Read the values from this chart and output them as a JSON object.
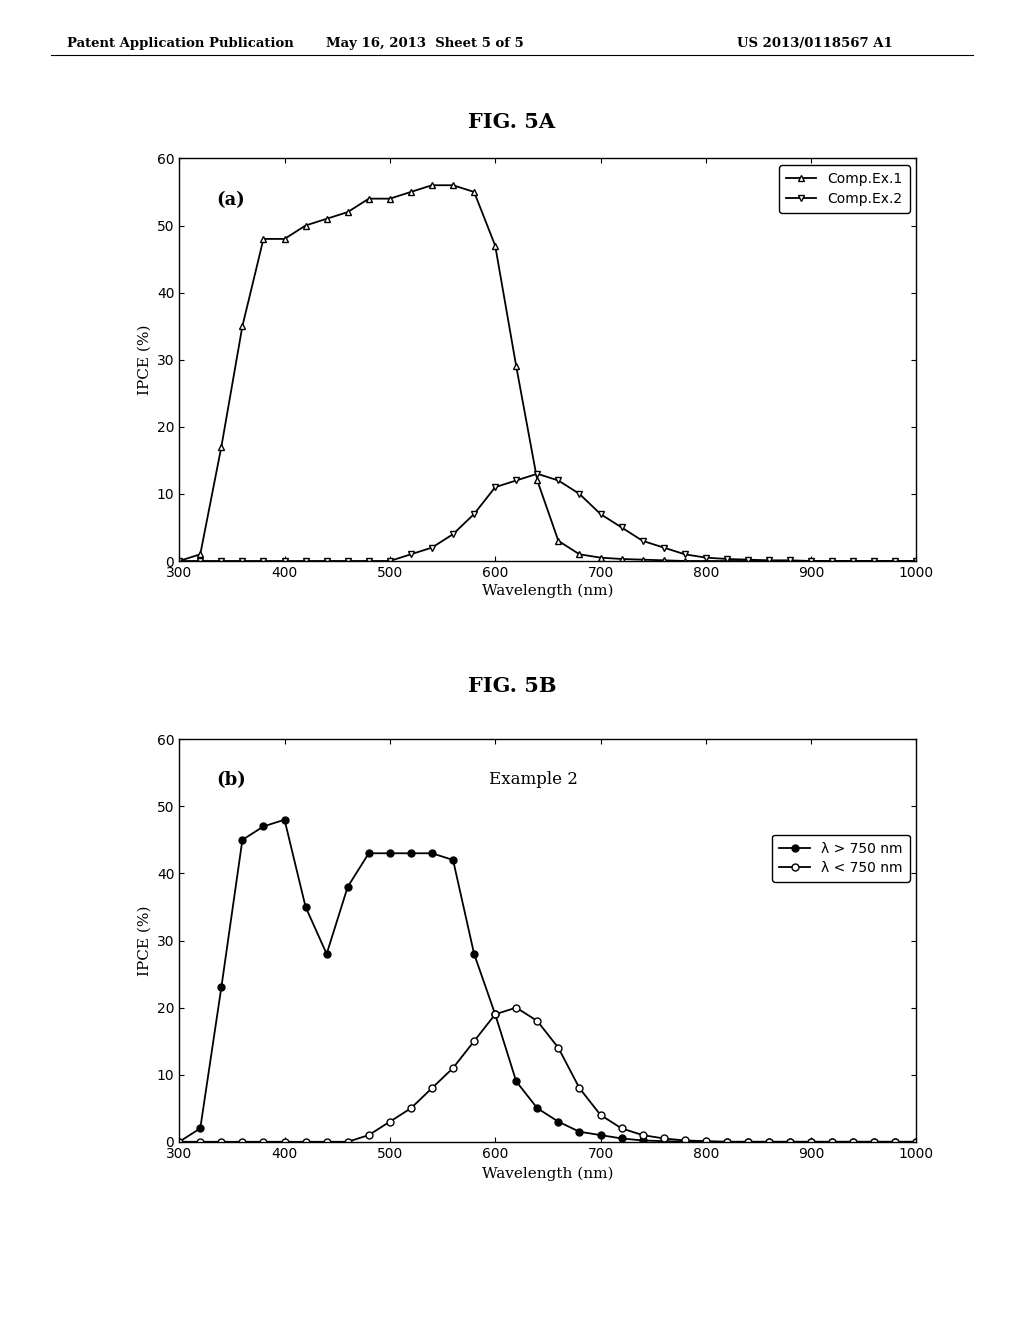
{
  "fig_title_a": "FIG. 5A",
  "fig_title_b": "FIG. 5B",
  "header_left": "Patent Application Publication",
  "header_mid": "May 16, 2013  Sheet 5 of 5",
  "header_right": "US 2013/0118567 A1",
  "xlabel": "Wavelength (nm)",
  "ylabel": "IPCE (%)",
  "xlim": [
    300,
    1000
  ],
  "ylim": [
    0,
    60
  ],
  "xticks": [
    300,
    400,
    500,
    600,
    700,
    800,
    900,
    1000
  ],
  "yticks": [
    0,
    10,
    20,
    30,
    40,
    50,
    60
  ],
  "panel_a_label": "(a)",
  "panel_b_label": "(b)",
  "legend_b_title": "Example 2",
  "legend_a_entries": [
    "Comp.Ex.1",
    "Comp.Ex.2"
  ],
  "legend_b_entries": [
    "λ > 750 nm",
    "λ < 750 nm"
  ],
  "background_color": "#ffffff",
  "comp_ex1_x": [
    300,
    320,
    340,
    360,
    380,
    400,
    420,
    440,
    460,
    480,
    500,
    520,
    540,
    560,
    580,
    600,
    620,
    640,
    660,
    680,
    700,
    720,
    740,
    760,
    780,
    800,
    820,
    840,
    860,
    880,
    900,
    920,
    940,
    960,
    980,
    1000
  ],
  "comp_ex1_y": [
    0,
    1,
    17,
    35,
    48,
    48,
    50,
    51,
    52,
    54,
    54,
    55,
    56,
    56,
    55,
    47,
    29,
    12,
    3,
    1,
    0.5,
    0.3,
    0.2,
    0.1,
    0.0,
    0.0,
    0.0,
    0.0,
    0.0,
    0.0,
    0.0,
    0.0,
    0.0,
    0.0,
    0.0,
    0.0
  ],
  "comp_ex2_x": [
    300,
    320,
    340,
    360,
    380,
    400,
    420,
    440,
    460,
    480,
    500,
    520,
    540,
    560,
    580,
    600,
    620,
    640,
    660,
    680,
    700,
    720,
    740,
    760,
    780,
    800,
    820,
    840,
    860,
    880,
    900,
    920,
    940,
    960,
    980,
    1000
  ],
  "comp_ex2_y": [
    0,
    0,
    0,
    0,
    0,
    0,
    0,
    0,
    0,
    0,
    0,
    1,
    2,
    4,
    7,
    11,
    12,
    13,
    12,
    10,
    7,
    5,
    3,
    2,
    1,
    0.5,
    0.3,
    0.2,
    0.1,
    0.1,
    0.0,
    0.0,
    0.0,
    0.0,
    0.0,
    0.0
  ],
  "ex2_gt750_x": [
    300,
    320,
    340,
    360,
    380,
    400,
    420,
    440,
    460,
    480,
    500,
    520,
    540,
    560,
    580,
    600,
    620,
    640,
    660,
    680,
    700,
    720,
    740,
    760,
    780,
    800,
    820,
    840,
    860,
    880,
    900,
    920,
    940,
    960,
    980,
    1000
  ],
  "ex2_gt750_y": [
    0,
    2,
    23,
    45,
    47,
    48,
    35,
    28,
    38,
    43,
    43,
    43,
    43,
    42,
    28,
    19,
    9,
    5,
    3,
    1.5,
    1,
    0.5,
    0.2,
    0.1,
    0.0,
    0.0,
    0.0,
    0.0,
    0.0,
    0.0,
    0.0,
    0.0,
    0.0,
    0.0,
    0.0,
    0.0
  ],
  "ex2_lt750_x": [
    300,
    320,
    340,
    360,
    380,
    400,
    420,
    440,
    460,
    480,
    500,
    520,
    540,
    560,
    580,
    600,
    620,
    640,
    660,
    680,
    700,
    720,
    740,
    760,
    780,
    800,
    820,
    840,
    860,
    880,
    900,
    920,
    940,
    960,
    980,
    1000
  ],
  "ex2_lt750_y": [
    0,
    0,
    0,
    0,
    0,
    0,
    0,
    0,
    0,
    1,
    3,
    5,
    8,
    11,
    15,
    19,
    20,
    18,
    14,
    8,
    4,
    2,
    1,
    0.5,
    0.2,
    0.1,
    0.0,
    0.0,
    0.0,
    0.0,
    0.0,
    0.0,
    0.0,
    0.0,
    0.0,
    0.0
  ]
}
